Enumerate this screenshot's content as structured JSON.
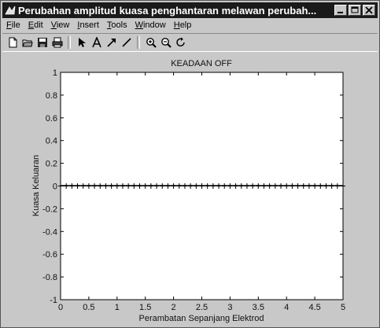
{
  "window": {
    "title": "Perubahan amplitud kuasa penghantaran melawan perubah...",
    "controls": [
      "minimize",
      "maximize",
      "close"
    ]
  },
  "menu": [
    {
      "pre": "",
      "u": "F",
      "post": "ile"
    },
    {
      "pre": "",
      "u": "E",
      "post": "dit"
    },
    {
      "pre": "",
      "u": "V",
      "post": "iew"
    },
    {
      "pre": "",
      "u": "I",
      "post": "nsert"
    },
    {
      "pre": "",
      "u": "T",
      "post": "ools"
    },
    {
      "pre": "",
      "u": "W",
      "post": "indow"
    },
    {
      "pre": "",
      "u": "H",
      "post": "elp"
    }
  ],
  "toolbar_icons": [
    "new-file-icon",
    "open-folder-icon",
    "save-icon",
    "print-icon",
    "pointer-icon",
    "text-icon",
    "arrow-icon",
    "line-icon",
    "zoom-in-icon",
    "zoom-out-icon",
    "rotate-icon"
  ],
  "chart_data": {
    "type": "line",
    "title": "KEADAAN OFF",
    "xlabel": "Perambatan Sepanjang Elektrod",
    "ylabel": "Kuasa Keluaran",
    "xlim": [
      0,
      5
    ],
    "ylim": [
      -1,
      1
    ],
    "xticks": [
      0,
      0.5,
      1,
      1.5,
      2,
      2.5,
      3,
      3.5,
      4,
      4.5,
      5
    ],
    "xtick_labels": [
      "0",
      "0.5",
      "1",
      "1.5",
      "2",
      "2.5",
      "3",
      "3.5",
      "4",
      "4.5",
      "5"
    ],
    "yticks": [
      -1,
      -0.8,
      -0.6,
      -0.4,
      -0.2,
      0,
      0.2,
      0.4,
      0.6,
      0.8,
      1
    ],
    "ytick_labels": [
      "-1",
      "-0.8",
      "-0.6",
      "-0.4",
      "-0.2",
      "0",
      "0.2",
      "0.4",
      "0.6",
      "0.8",
      "1"
    ],
    "grid": false,
    "series": [
      {
        "marker": "+",
        "color": "#000000",
        "x": [
          0,
          0.1,
          0.2,
          0.3,
          0.4,
          0.5,
          0.6,
          0.7,
          0.8,
          0.9,
          1,
          1.1,
          1.2,
          1.3,
          1.4,
          1.5,
          1.6,
          1.7,
          1.8,
          1.9,
          2,
          2.1,
          2.2,
          2.3,
          2.4,
          2.5,
          2.6,
          2.7,
          2.8,
          2.9,
          3,
          3.1,
          3.2,
          3.3,
          3.4,
          3.5,
          3.6,
          3.7,
          3.8,
          3.9,
          4,
          4.1,
          4.2,
          4.3,
          4.4,
          4.5,
          4.6,
          4.7,
          4.8,
          4.9,
          5
        ],
        "y": [
          0,
          0,
          0,
          0,
          0,
          0,
          0,
          0,
          0,
          0,
          0,
          0,
          0,
          0,
          0,
          0,
          0,
          0,
          0,
          0,
          0,
          0,
          0,
          0,
          0,
          0,
          0,
          0,
          0,
          0,
          0,
          0,
          0,
          0,
          0,
          0,
          0,
          0,
          0,
          0,
          0,
          0,
          0,
          0,
          0,
          0,
          0,
          0,
          0,
          0,
          0
        ]
      }
    ]
  }
}
